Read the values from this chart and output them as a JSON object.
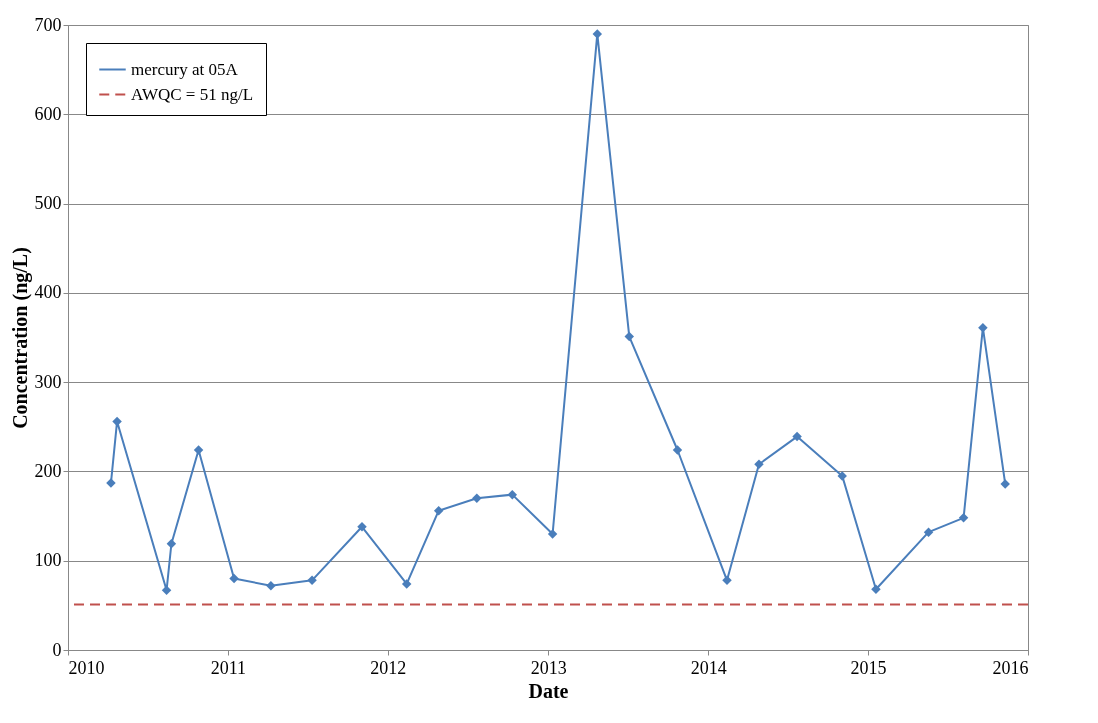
{
  "chart_data": {
    "type": "line",
    "xlabel": "Date",
    "ylabel": "Concentration (ng/L)",
    "x": [
      "2010-04-09",
      "2010-04-23",
      "2010-08-14",
      "2010-08-25",
      "2010-10-26",
      "2011-01-15",
      "2011-04-09",
      "2011-07-12",
      "2011-11-03",
      "2012-02-13",
      "2012-04-26",
      "2012-07-22",
      "2012-10-11",
      "2013-01-11",
      "2013-04-23",
      "2013-07-05",
      "2013-10-23",
      "2014-02-13",
      "2014-04-27",
      "2014-07-23",
      "2014-11-03",
      "2015-01-19",
      "2015-05-19",
      "2015-08-07",
      "2015-09-20",
      "2015-11-10"
    ],
    "series": [
      {
        "name": "mercury at 05A",
        "color": "#4a7ebb",
        "values": [
          187,
          256,
          67,
          119,
          224,
          80,
          72,
          78,
          138,
          74,
          156,
          170,
          174,
          130,
          690,
          351,
          224,
          78,
          208,
          239,
          195,
          68,
          132,
          148,
          361,
          186
        ]
      }
    ],
    "ref_lines": [
      {
        "axis": "y",
        "value": 51,
        "label": "AWQC = 51 ng/L",
        "color": "#c0504d",
        "line_style": "dashed"
      }
    ],
    "xlim": [
      "2010",
      "2016"
    ],
    "xticks": [
      "2010",
      "2011",
      "2012",
      "2013",
      "2014",
      "2015",
      "2016"
    ],
    "ylim": [
      0,
      700
    ],
    "yticks": [
      0,
      100,
      200,
      300,
      400,
      500,
      600,
      700
    ],
    "grid": "y",
    "legend": "top left",
    "marker": "diamond",
    "line_style": "solid"
  }
}
